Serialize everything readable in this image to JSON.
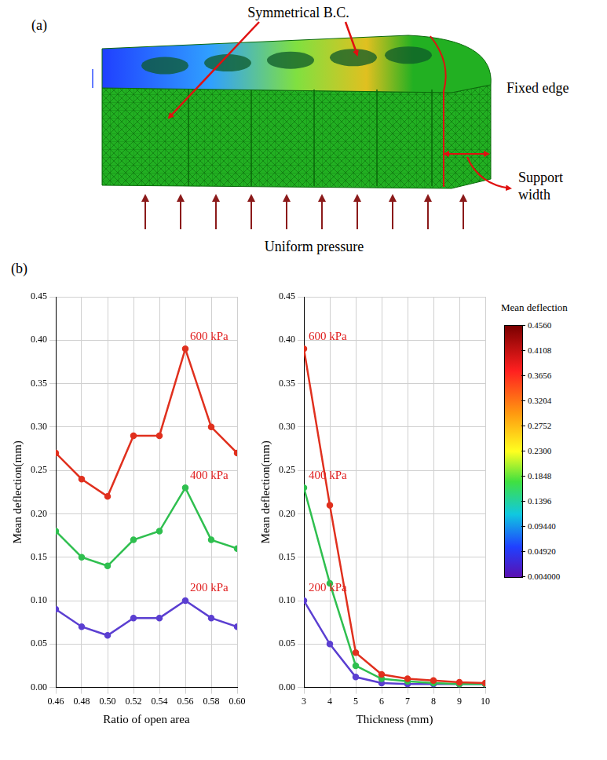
{
  "panel_a": {
    "label": "(a)",
    "symmetry_label": "Symmetrical B.C.",
    "fixed_label": "Fixed edge",
    "support_label": "Support width",
    "pressure_label": "Uniform pressure"
  },
  "panel_b": {
    "label": "(b)"
  },
  "color_bar": {
    "title": "Mean deflection",
    "range": [
      0.004,
      0.456
    ],
    "ticks": [
      {
        "value": 0.456,
        "label": "0.4560"
      },
      0.4108,
      0.3656,
      0.3204,
      0.2752,
      {
        "value": 0.23,
        "label": "0.2300"
      },
      0.1848,
      0.1396,
      {
        "value": 0.0944,
        "label": "0.09440"
      },
      {
        "value": 0.0492,
        "label": "0.04920"
      },
      {
        "value": 0.004,
        "label": "0.004000"
      }
    ]
  },
  "chart_data": [
    {
      "type": "line",
      "x_label": "Ratio of open area",
      "y_label": "Mean deflection(mm)",
      "x": [
        0.46,
        0.48,
        0.5,
        0.52,
        0.54,
        0.56,
        0.58,
        0.6
      ],
      "xlim": [
        0.46,
        0.6
      ],
      "xticks": [
        0.46,
        0.48,
        {
          "value": 0.5,
          "label": "0.50"
        },
        0.52,
        0.54,
        0.56,
        0.58,
        {
          "value": 0.6,
          "label": "0.60"
        }
      ],
      "ylim": [
        0,
        0.45
      ],
      "yticks": [
        {
          "value": 0,
          "label": "0.00"
        },
        0.05,
        {
          "value": 0.1,
          "label": "0.10"
        },
        0.15,
        {
          "value": 0.2,
          "label": "0.20"
        },
        0.25,
        {
          "value": 0.3,
          "label": "0.30"
        },
        0.35,
        {
          "value": 0.4,
          "label": "0.40"
        },
        0.45
      ],
      "grid": true,
      "series": [
        {
          "name": "600 kPa",
          "color": "#e0301e",
          "values": [
            0.27,
            0.24,
            0.22,
            0.29,
            0.29,
            0.39,
            0.3,
            0.27
          ]
        },
        {
          "name": "400 kPa",
          "color": "#2fbf4f",
          "values": [
            0.18,
            0.15,
            0.14,
            0.17,
            0.18,
            0.23,
            0.17,
            0.16
          ]
        },
        {
          "name": "200 kPa",
          "color": "#5b3fd1",
          "values": [
            0.09,
            0.07,
            0.06,
            0.08,
            0.08,
            0.1,
            0.08,
            0.07
          ]
        }
      ]
    },
    {
      "type": "line",
      "x_label": "Thickness (mm)",
      "y_label": "Mean deflection(mm)",
      "x": [
        3,
        4,
        5,
        6,
        7,
        8,
        9,
        10
      ],
      "xlim": [
        3,
        10
      ],
      "xticks": [
        3,
        4,
        5,
        6,
        7,
        8,
        9,
        10
      ],
      "ylim": [
        0,
        0.45
      ],
      "yticks": [
        {
          "value": 0,
          "label": "0.00"
        },
        0.05,
        {
          "value": 0.1,
          "label": "0.10"
        },
        0.15,
        {
          "value": 0.2,
          "label": "0.20"
        },
        0.25,
        {
          "value": 0.3,
          "label": "0.30"
        },
        0.35,
        {
          "value": 0.4,
          "label": "0.40"
        },
        0.45
      ],
      "grid": true,
      "series": [
        {
          "name": "600 kPa",
          "color": "#e0301e",
          "values": [
            0.39,
            0.21,
            0.04,
            0.015,
            0.01,
            0.008,
            0.006,
            0.005
          ]
        },
        {
          "name": "400 kPa",
          "color": "#2fbf4f",
          "values": [
            0.23,
            0.12,
            0.025,
            0.01,
            0.007,
            0.005,
            0.004,
            0.004
          ]
        },
        {
          "name": "200 kPa",
          "color": "#5b3fd1",
          "values": [
            0.1,
            0.05,
            0.012,
            0.005,
            0.004,
            0.004,
            0.004,
            0.004
          ]
        }
      ]
    }
  ]
}
